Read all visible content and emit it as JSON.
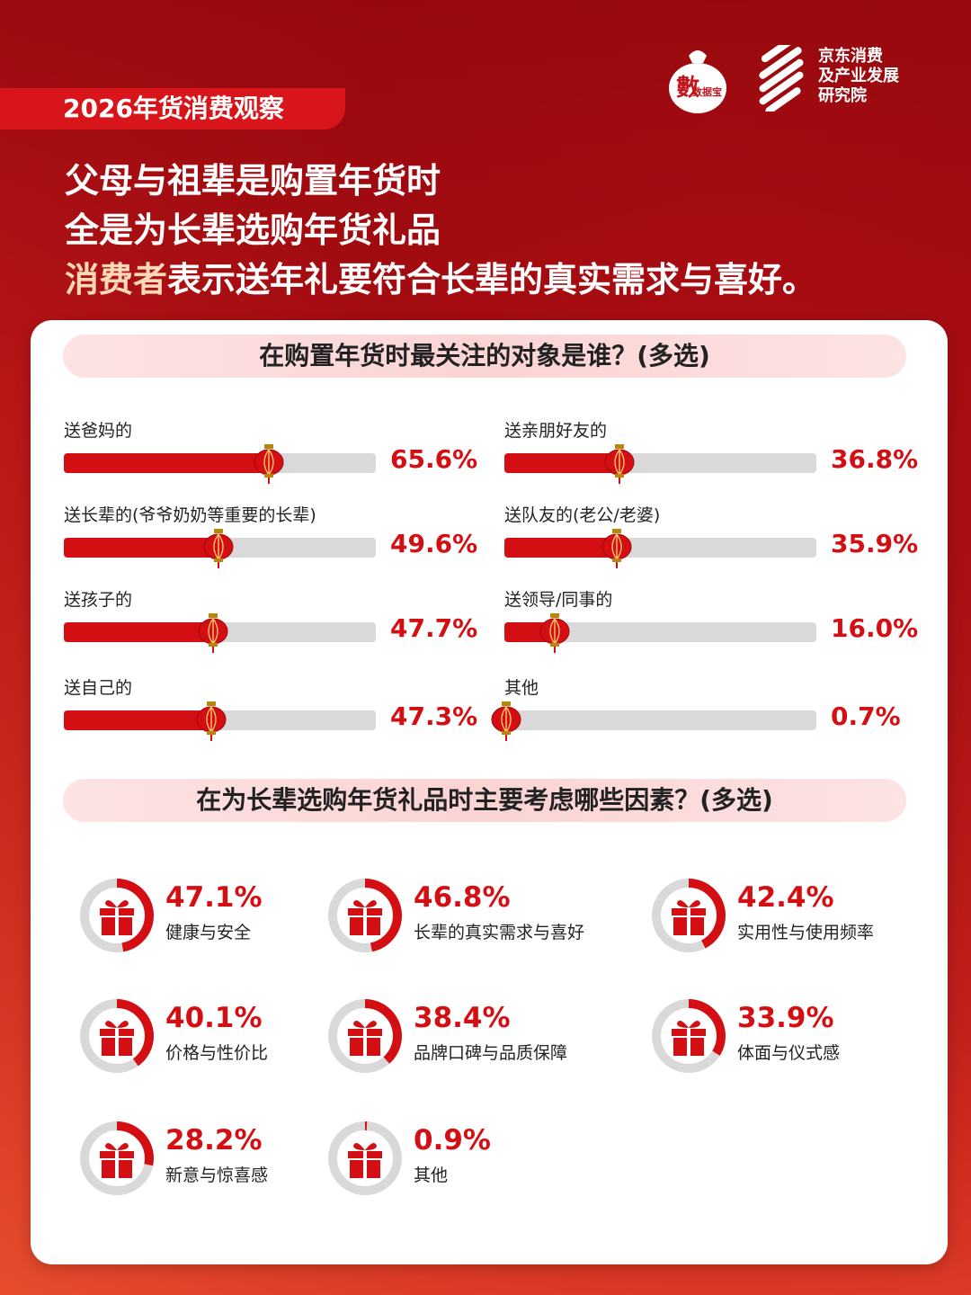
{
  "header": {
    "tag": "2026年货消费观察",
    "logo_badge": "数据宝",
    "org_line1": "京东消费",
    "org_line2": "及产业发展",
    "org_line3": "研究院",
    "headline_line1": "父母与祖辈是购置年货时",
    "headline_line2": "全是为长辈选购年货礼品",
    "headline_line3_highlight": "消费者",
    "headline_line3_rest": "表示送年礼要符合长辈的真实需求与喜好。"
  },
  "colors": {
    "accent": "#d40f14",
    "track": "#d9d9d9",
    "title_bg": "#fde3e3"
  },
  "chart_data": [
    {
      "type": "bar",
      "title": "在购置年货时最关注的对象是谁？(多选)",
      "unit": "%",
      "xlim": [
        0,
        100
      ],
      "categories": [
        "送爸妈的",
        "送长辈的(爷爷奶奶等重要的长辈)",
        "送孩子的",
        "送自己的",
        "送亲朋好友的",
        "送队友的(老公/老婆)",
        "送领导/同事的",
        "其他"
      ],
      "values": [
        65.6,
        49.6,
        47.7,
        47.3,
        36.8,
        35.9,
        16.0,
        0.7
      ],
      "labels": [
        "65.6%",
        "49.6%",
        "47.7%",
        "47.3%",
        "36.8%",
        "35.9%",
        "16.0%",
        "0.7%"
      ]
    },
    {
      "type": "pie",
      "title": "在为长辈选购年货礼品时主要考虑哪些因素？(多选)",
      "unit": "%",
      "categories": [
        "健康与安全",
        "长辈的真实需求与喜好",
        "实用性与使用频率",
        "价格与性价比",
        "品牌口碑与品质保障",
        "体面与仪式感",
        "新意与惊喜感",
        "其他"
      ],
      "values": [
        47.1,
        46.8,
        42.4,
        40.1,
        38.4,
        33.9,
        28.2,
        0.9
      ],
      "labels": [
        "47.1%",
        "46.8%",
        "42.4%",
        "40.1%",
        "38.4%",
        "33.9%",
        "28.2%",
        "0.9%"
      ]
    }
  ]
}
